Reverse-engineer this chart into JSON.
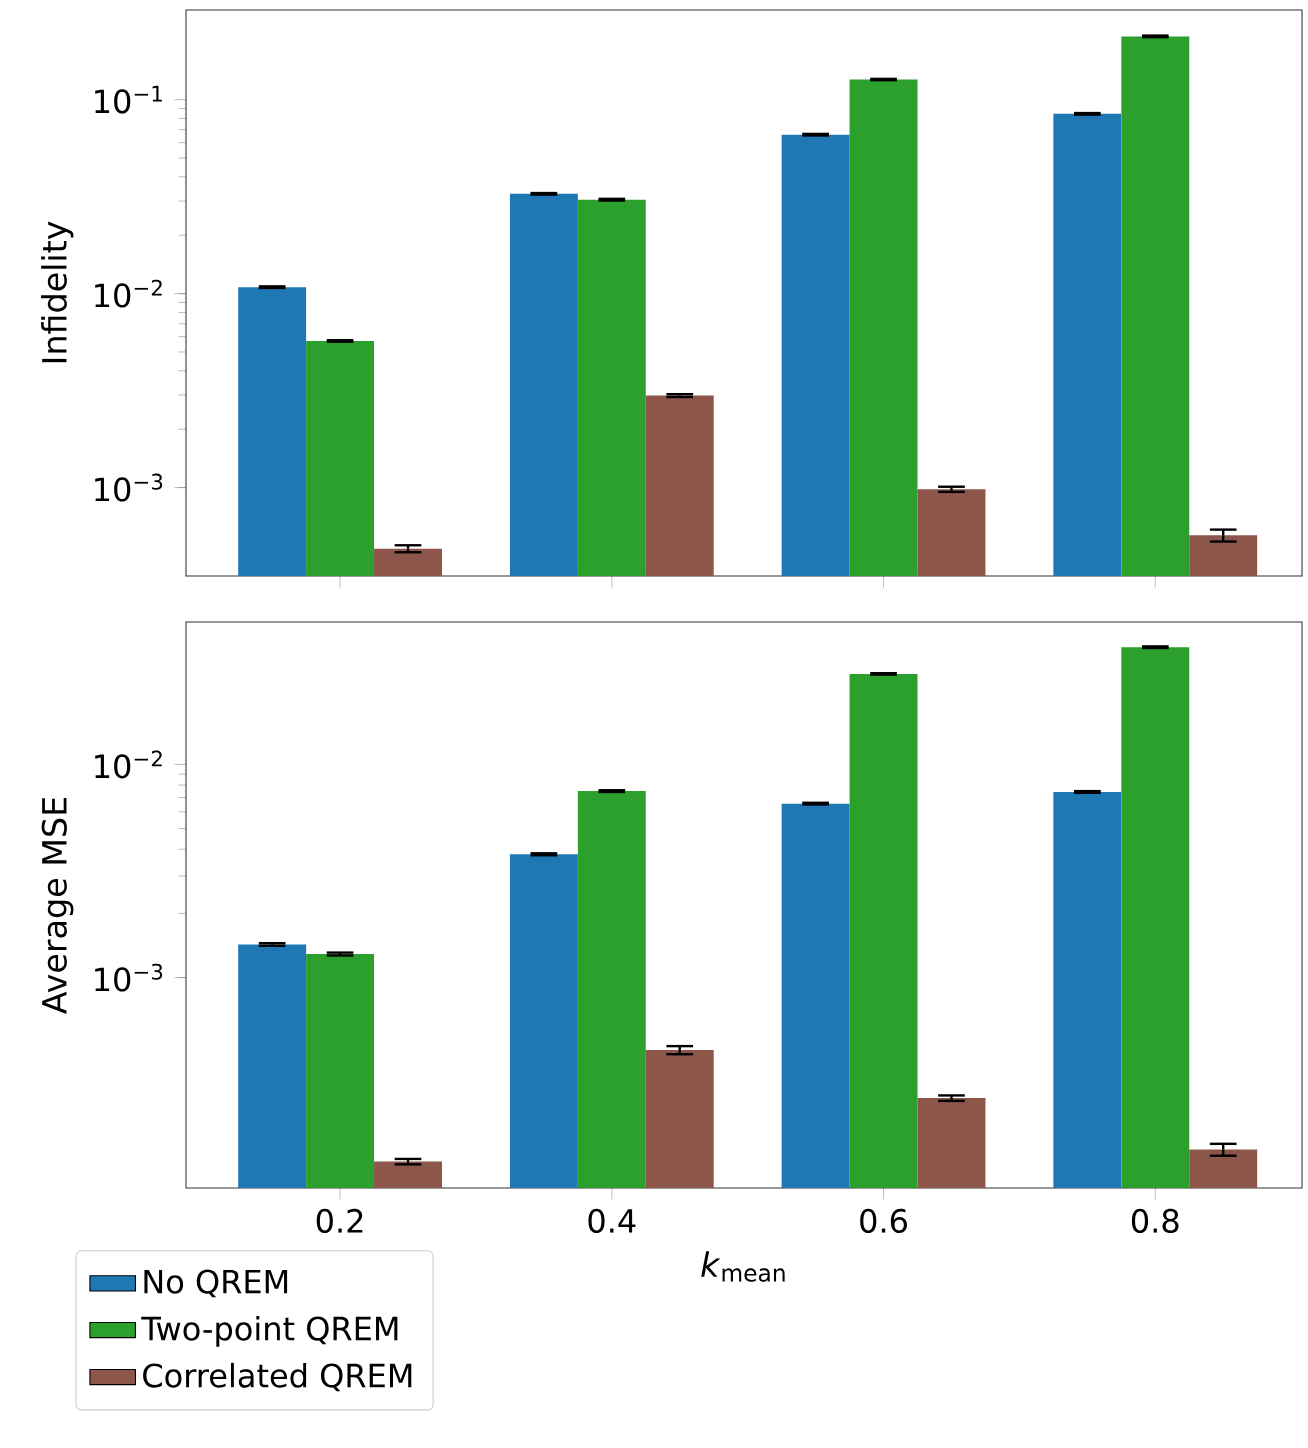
{
  "chart_data": [
    {
      "type": "bar",
      "ylabel": "Infidelity",
      "log": true,
      "tick_labels": "y",
      "categories": [
        "0.2",
        "0.4",
        "0.6",
        "0.8"
      ],
      "ylim": [
        0.00035,
        0.29
      ],
      "yticks": [
        {
          "value": 0.001,
          "label": "10$^{−3}$"
        },
        {
          "value": 0.01,
          "label": "10$^{−2}$"
        },
        {
          "value": 0.1,
          "label": "10$^{−1}$"
        }
      ],
      "series": [
        {
          "color": "#1f77b4",
          "values": [
            0.0108,
            0.0327,
            0.066,
            0.0845
          ],
          "errors": [
            0.0001,
            0.0003,
            0.0006,
            0.0008
          ]
        },
        {
          "color": "#2ca02c",
          "values": [
            0.0057,
            0.0305,
            0.127,
            0.212
          ],
          "errors": [
            5e-05,
            0.0003,
            0.001,
            0.002
          ]
        },
        {
          "color": "#8c564b",
          "values": [
            0.000484,
            0.00298,
            0.00098,
            0.000567
          ],
          "errors": [
            2e-05,
            5e-05,
            3e-05,
            4e-05
          ]
        }
      ]
    },
    {
      "type": "bar",
      "ylabel": "Average MSE",
      "xlabel": "*k*$_{mean}$",
      "log": true,
      "legend": "bottom",
      "categories": [
        "0.2",
        "0.4",
        "0.6",
        "0.8"
      ],
      "ylim": [
        0.000103,
        0.0466
      ],
      "yticks": [
        {
          "value": 0.001,
          "label": "10$^{−3}$"
        },
        {
          "value": 0.01,
          "label": "10$^{−2}$"
        }
      ],
      "series": [
        {
          "name": "No QREM",
          "color": "#1f77b4",
          "values": [
            0.00143,
            0.00379,
            0.00655,
            0.00743
          ],
          "errors": [
            2e-05,
            4e-05,
            6e-05,
            7e-05
          ]
        },
        {
          "name": "Two-point QREM",
          "color": "#2ca02c",
          "values": [
            0.00129,
            0.0075,
            0.0266,
            0.0355
          ],
          "errors": [
            2e-05,
            7e-05,
            0.0002,
            0.0003
          ]
        },
        {
          "name": "Correlated QREM",
          "color": "#8c564b",
          "values": [
            0.000137,
            0.000457,
            0.000272,
            0.000156
          ],
          "errors": [
            4e-06,
            2e-05,
            8e-06,
            1e-05
          ]
        }
      ]
    }
  ]
}
